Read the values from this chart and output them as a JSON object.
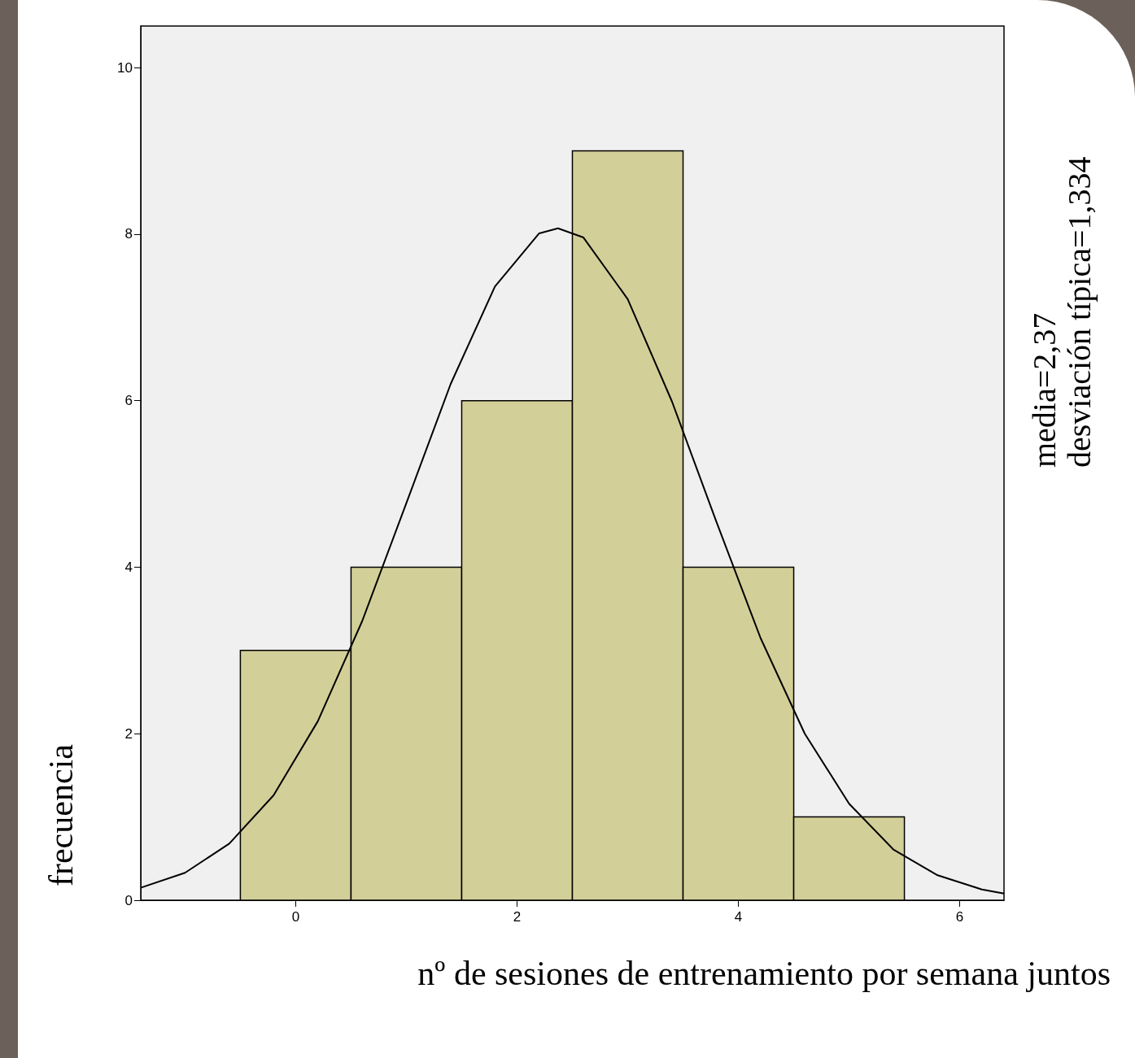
{
  "chart_data": {
    "type": "histogram",
    "xlabel": "nº de sesiones de entrenamiento por semana juntos",
    "ylabel": "frecuencia",
    "annotations": [
      "media=2,37",
      "desviación típica=1,334"
    ],
    "series": [
      {
        "color": "#d3cf98",
        "bins": [
          -0.5,
          0.5,
          1.5,
          2.5,
          3.5,
          4.5,
          5.5
        ],
        "values": [
          3,
          4,
          6,
          9,
          4,
          1
        ]
      },
      {
        "type": "line",
        "color": "#000000",
        "x": [
          -1.4,
          -1.0,
          -0.6,
          -0.2,
          0.2,
          0.6,
          1.0,
          1.4,
          1.8,
          2.2,
          2.37,
          2.6,
          3.0,
          3.4,
          3.8,
          4.2,
          4.6,
          5.0,
          5.4,
          5.8,
          6.2,
          6.4
        ],
        "values": [
          0.15,
          0.33,
          0.68,
          1.26,
          2.15,
          3.35,
          4.77,
          6.2,
          7.37,
          8.01,
          8.07,
          7.96,
          7.22,
          5.99,
          4.55,
          3.15,
          2.0,
          1.16,
          0.61,
          0.3,
          0.13,
          0.08
        ]
      }
    ],
    "xlim": [
      -1.4,
      6.4
    ],
    "xticks": [
      0,
      2,
      4,
      6
    ],
    "ylim": [
      0,
      10.5
    ],
    "yticks": [
      0,
      2,
      4,
      6,
      8,
      10
    ],
    "grid": false
  }
}
